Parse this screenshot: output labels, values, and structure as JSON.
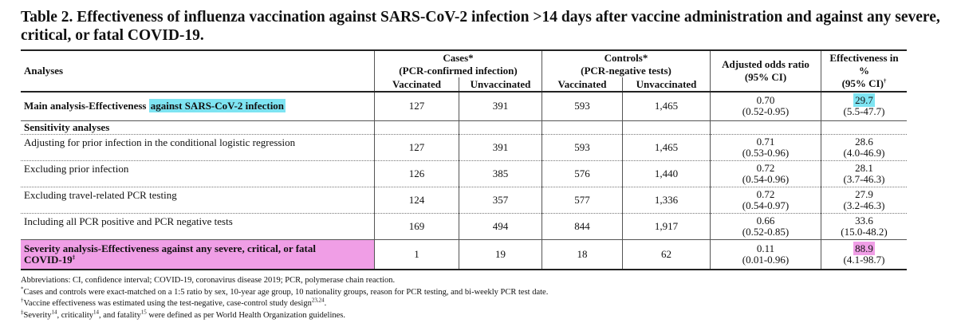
{
  "title": "Table 2. Effectiveness of influenza vaccination against SARS-CoV-2 infection >14 days after vaccine administration and against any severe, critical, or fatal COVID-19.",
  "header": {
    "analyses": "Analyses",
    "cases_line1": "Cases*",
    "cases_line2": "(PCR-confirmed infection)",
    "controls_line1": "Controls*",
    "controls_line2": "(PCR-negative tests)",
    "aor_line1": "Adjusted odds ratio",
    "aor_line2": "(95% CI)",
    "eff_line1": "Effectiveness in %",
    "eff_line2": "(95% CI)",
    "eff_sup": "†",
    "vaccinated": "Vaccinated",
    "unvaccinated": "Unvaccinated"
  },
  "main_row": {
    "label_plain": "Main analysis-Effectiveness ",
    "label_highlight": "against SARS-CoV-2 infection",
    "cases_vacc": "127",
    "cases_unvacc": "391",
    "ctrl_vacc": "593",
    "ctrl_unvacc": "1,465",
    "aor": "0.70",
    "aor_ci": "(0.52-0.95)",
    "eff": "29.7",
    "eff_ci": "(5.5-47.7)"
  },
  "sensitivity_header": "Sensitivity analyses",
  "sensitivity_rows": [
    {
      "label": "Adjusting for prior infection in the conditional logistic regression",
      "cases_vacc": "127",
      "cases_unvacc": "391",
      "ctrl_vacc": "593",
      "ctrl_unvacc": "1,465",
      "aor": "0.71",
      "aor_ci": "(0.53-0.96)",
      "eff": "28.6",
      "eff_ci": "(4.0-46.9)"
    },
    {
      "label": "Excluding prior infection",
      "cases_vacc": "126",
      "cases_unvacc": "385",
      "ctrl_vacc": "576",
      "ctrl_unvacc": "1,440",
      "aor": "0.72",
      "aor_ci": "(0.54-0.96)",
      "eff": "28.1",
      "eff_ci": "(3.7-46.3)"
    },
    {
      "label": "Excluding travel-related PCR testing",
      "cases_vacc": "124",
      "cases_unvacc": "357",
      "ctrl_vacc": "577",
      "ctrl_unvacc": "1,336",
      "aor": "0.72",
      "aor_ci": "(0.54-0.97)",
      "eff": "27.9",
      "eff_ci": "(3.2-46.3)"
    },
    {
      "label": "Including all PCR positive and PCR negative tests",
      "cases_vacc": "169",
      "cases_unvacc": "494",
      "ctrl_vacc": "844",
      "ctrl_unvacc": "1,917",
      "aor": "0.66",
      "aor_ci": "(0.52-0.85)",
      "eff": "33.6",
      "eff_ci": "(15.0-48.2)"
    }
  ],
  "severity_row": {
    "label_line1": "Severity analysis-Effectiveness against any severe, critical, or fatal",
    "label_line2": "COVID-19",
    "label_sup": "‡",
    "cases_vacc": "1",
    "cases_unvacc": "19",
    "ctrl_vacc": "18",
    "ctrl_unvacc": "62",
    "aor": "0.11",
    "aor_ci": "(0.01-0.96)",
    "eff": "88.9",
    "eff_ci": "(4.1-98.7)"
  },
  "footnotes": {
    "abbrev": "Abbreviations: CI, confidence interval; COVID-19, coronavirus disease 2019; PCR, polymerase chain reaction.",
    "n1_mark": "*",
    "n1": "Cases and controls were exact-matched on a 1:5 ratio by sex, 10-year age group, 10 nationality groups, reason for PCR testing, and bi-weekly PCR test date.",
    "n2_mark": "†",
    "n2": "Vaccine effectiveness was estimated using the test-negative, case-control study design",
    "n2_refs": "23,24",
    "n2_end": ".",
    "n3_mark": "‡",
    "n3_a": "Severity",
    "n3_ref1": "14",
    "n3_b": ", criticality",
    "n3_ref2": "14",
    "n3_c": ", and fatality",
    "n3_ref3": "15",
    "n3_d": " were defined as per World Health Organization guidelines."
  },
  "colors": {
    "highlight_cyan": "#7ee4f2",
    "highlight_pink": "#f09ee6"
  }
}
